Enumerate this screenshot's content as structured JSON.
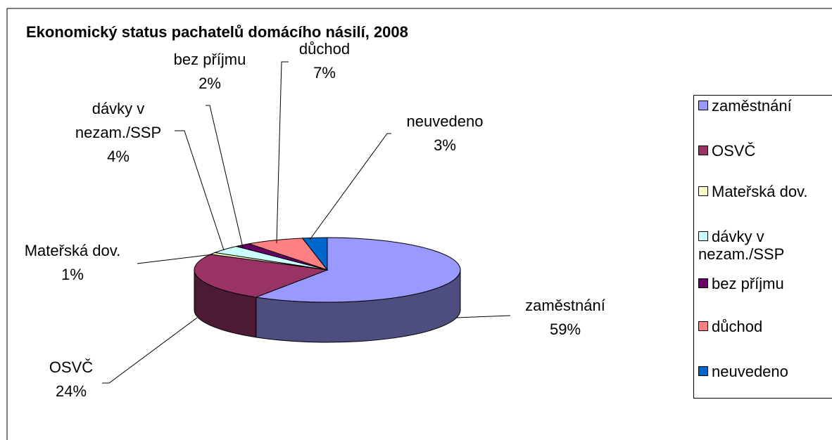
{
  "chart_data": {
    "type": "pie3d",
    "title": "Ekonomický status pachatelů domácího násilí, 2008",
    "categories": [
      "zaměstnání",
      "OSVČ",
      "Mateřská dov.",
      "dávky v nezam./SSP",
      "bez příjmu",
      "důchod",
      "neuvedeno"
    ],
    "values": [
      59,
      24,
      1,
      4,
      2,
      7,
      3
    ],
    "value_labels": [
      "59%",
      "24%",
      "1%",
      "4%",
      "2%",
      "7%",
      "3%"
    ],
    "colors": [
      "#9999ff",
      "#993366",
      "#ffffcc",
      "#ccffff",
      "#660066",
      "#ff8080",
      "#0066cc"
    ],
    "legend": "right"
  }
}
